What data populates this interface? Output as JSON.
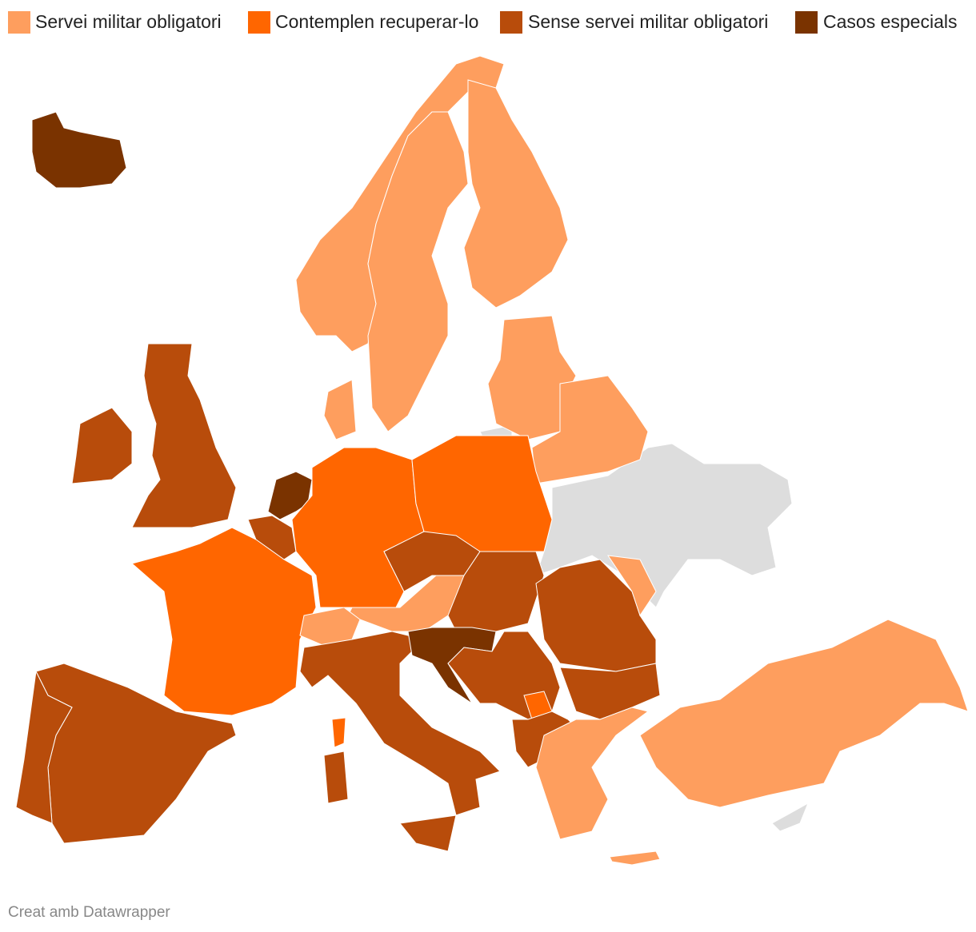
{
  "legend": {
    "items": [
      {
        "label": "Servei militar obligatori",
        "color": "#fe9e5e"
      },
      {
        "label": "Contemplen recuperar-lo",
        "color": "#ff6600"
      },
      {
        "label": "Sense servei militar obligatori",
        "color": "#b84c0b"
      },
      {
        "label": "Casos especials",
        "color": "#7a3300"
      }
    ]
  },
  "no_data_color": "#dddddd",
  "footer": {
    "credit": "Creat amb Datawrapper"
  }
}
